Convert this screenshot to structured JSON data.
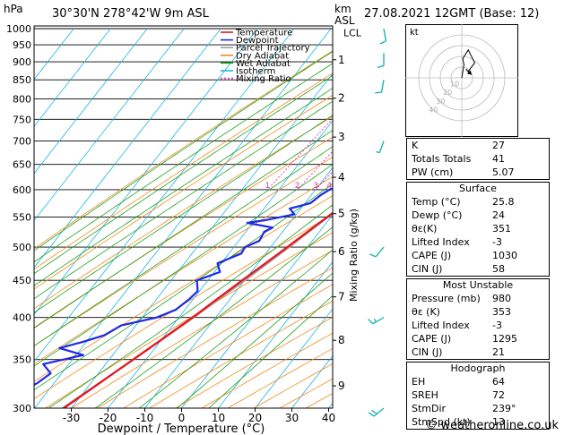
{
  "header": {
    "hpa_label": "hPa",
    "location": "30°30'N  278°42'W  9m  ASL",
    "km_label": "km",
    "asl_label": "ASL",
    "datetime": "27.08.2021  12GMT  (Base: 12)"
  },
  "chart_data": {
    "type": "skew-t",
    "xlabel": "Dewpoint / Temperature (°C)",
    "ylabel_right": "Mixing Ratio (g/kg)",
    "x_ticks": [
      -30,
      -20,
      -10,
      0,
      10,
      20,
      30,
      40
    ],
    "pressure_ticks": [
      300,
      350,
      400,
      450,
      500,
      550,
      600,
      650,
      700,
      750,
      800,
      850,
      900,
      950,
      1000
    ],
    "altitude_ticks_km": [
      {
        "km": "1",
        "p": 906
      },
      {
        "km": "2",
        "p": 802
      },
      {
        "km": "3",
        "p": 709
      },
      {
        "km": "4",
        "p": 624
      },
      {
        "km": "5",
        "p": 556
      },
      {
        "km": "6",
        "p": 493
      },
      {
        "km": "7",
        "p": 427
      },
      {
        "km": "8",
        "p": 372
      },
      {
        "km": "9",
        "p": 322
      }
    ],
    "lcl_label": "LCL",
    "lcl_pressure": 985,
    "mixing_ratio_labels": [
      "1",
      "2",
      "3",
      "4",
      "6",
      "8",
      "10",
      "15",
      "20",
      "25"
    ],
    "legend": [
      {
        "name": "Temperature",
        "color": "#e8141e"
      },
      {
        "name": "Dewpoint",
        "color": "#1e28e6"
      },
      {
        "name": "Parcel Trajectory",
        "color": "#a0a0a0"
      },
      {
        "name": "Dry Adiabat",
        "color": "#f08c1e"
      },
      {
        "name": "Wet Adiabat",
        "color": "#1ea01e"
      },
      {
        "name": "Isotherm",
        "color": "#1eb4e6"
      },
      {
        "name": "Mixing Ratio",
        "color": "#e632b4"
      }
    ],
    "temperature": [
      [
        1000,
        25.8
      ],
      [
        975,
        24.6
      ],
      [
        950,
        23.4
      ],
      [
        925,
        22.3
      ],
      [
        900,
        21.0
      ],
      [
        875,
        19.7
      ],
      [
        850,
        18.5
      ],
      [
        825,
        17.3
      ],
      [
        800,
        15.8
      ],
      [
        775,
        14.4
      ],
      [
        750,
        13.0
      ],
      [
        725,
        11.4
      ],
      [
        700,
        9.8
      ],
      [
        675,
        8.4
      ],
      [
        650,
        6.6
      ],
      [
        625,
        4.8
      ],
      [
        600,
        3.0
      ],
      [
        575,
        1.0
      ],
      [
        550,
        -1.0
      ],
      [
        525,
        -3.2
      ],
      [
        500,
        -5.5
      ],
      [
        475,
        -8.0
      ],
      [
        450,
        -10.7
      ],
      [
        425,
        -13.4
      ],
      [
        400,
        -16.3
      ],
      [
        375,
        -19.7
      ],
      [
        350,
        -23.5
      ],
      [
        325,
        -27.6
      ],
      [
        300,
        -32.0
      ]
    ],
    "dewpoint": [
      [
        1000,
        24.0
      ],
      [
        975,
        23.0
      ],
      [
        960,
        22.0
      ],
      [
        950,
        21.0
      ],
      [
        940,
        19.0
      ],
      [
        925,
        18.4
      ],
      [
        910,
        17.2
      ],
      [
        900,
        16.8
      ],
      [
        885,
        17.5
      ],
      [
        875,
        14.8
      ],
      [
        860,
        16.2
      ],
      [
        850,
        15.5
      ],
      [
        825,
        14.7
      ],
      [
        800,
        13.6
      ],
      [
        785,
        13.8
      ],
      [
        775,
        12.8
      ],
      [
        760,
        11.5
      ],
      [
        750,
        9.0
      ],
      [
        742,
        9.4
      ],
      [
        735,
        6.0
      ],
      [
        725,
        4.4
      ],
      [
        715,
        5.6
      ],
      [
        705,
        1.5
      ],
      [
        700,
        3.5
      ],
      [
        690,
        1.4
      ],
      [
        680,
        3.0
      ],
      [
        670,
        0.8
      ],
      [
        660,
        1.6
      ],
      [
        650,
        -0.8
      ],
      [
        640,
        -0.4
      ],
      [
        625,
        -4.5
      ],
      [
        612,
        -2.5
      ],
      [
        600,
        -6.2
      ],
      [
        590,
        -7.4
      ],
      [
        575,
        -8.5
      ],
      [
        565,
        -13.0
      ],
      [
        555,
        -10.5
      ],
      [
        545,
        -17.0
      ],
      [
        540,
        -21.5
      ],
      [
        532,
        -13.6
      ],
      [
        525,
        -15.0
      ],
      [
        510,
        -14.4
      ],
      [
        500,
        -17.0
      ],
      [
        490,
        -16.6
      ],
      [
        475,
        -21.0
      ],
      [
        462,
        -18.5
      ],
      [
        450,
        -23.0
      ],
      [
        435,
        -20.5
      ],
      [
        425,
        -21.0
      ],
      [
        410,
        -22.5
      ],
      [
        400,
        -26.0
      ],
      [
        390,
        -34.0
      ],
      [
        378,
        -36.5
      ],
      [
        370,
        -41.0
      ],
      [
        363,
        -46.0
      ],
      [
        355,
        -38.0
      ],
      [
        345,
        -47.0
      ],
      [
        335,
        -43.0
      ],
      [
        325,
        -44.5
      ],
      [
        312,
        -48.5
      ],
      [
        300,
        -49.5
      ]
    ],
    "parcel": [
      [
        1000,
        25.8
      ],
      [
        985,
        24.6
      ],
      [
        950,
        22.8
      ],
      [
        900,
        20.4
      ],
      [
        850,
        17.9
      ],
      [
        800,
        15.3
      ],
      [
        750,
        12.5
      ],
      [
        700,
        9.6
      ],
      [
        650,
        6.5
      ],
      [
        600,
        3.0
      ],
      [
        550,
        -0.8
      ],
      [
        500,
        -5.0
      ],
      [
        450,
        -10.0
      ],
      [
        400,
        -16.0
      ],
      [
        350,
        -23.4
      ],
      [
        300,
        -32.4
      ]
    ],
    "wind_barbs": [
      {
        "p": 300,
        "dir": 230,
        "spd": 20
      },
      {
        "p": 400,
        "dir": 240,
        "spd": 15
      },
      {
        "p": 500,
        "dir": 220,
        "spd": 10
      },
      {
        "p": 700,
        "dir": 200,
        "spd": 5
      },
      {
        "p": 850,
        "dir": 190,
        "spd": 10
      },
      {
        "p": 925,
        "dir": 180,
        "spd": 10
      },
      {
        "p": 1000,
        "dir": 170,
        "spd": 10
      }
    ]
  },
  "hodograph": {
    "unit_label": "kt",
    "ring_labels": [
      "10",
      "20",
      "30",
      "40"
    ],
    "trace": [
      [
        0,
        0
      ],
      [
        1,
        6
      ],
      [
        2,
        12
      ],
      [
        1,
        18
      ],
      [
        6,
        26
      ],
      [
        12,
        14
      ],
      [
        6,
        6
      ]
    ],
    "storm_motion": [
      9,
      3
    ]
  },
  "indices": {
    "basic": [
      {
        "k": "K",
        "v": "27"
      },
      {
        "k": "Totals Totals",
        "v": "41"
      },
      {
        "k": "PW (cm)",
        "v": "5.07"
      }
    ],
    "surface": {
      "title": "Surface",
      "rows": [
        {
          "k": "Temp (°C)",
          "v": "25.8"
        },
        {
          "k": "Dewp (°C)",
          "v": "24"
        },
        {
          "k": "θε(K)",
          "v": "351"
        },
        {
          "k": "Lifted Index",
          "v": "-3"
        },
        {
          "k": "CAPE (J)",
          "v": "1030"
        },
        {
          "k": "CIN (J)",
          "v": "58"
        }
      ]
    },
    "most_unstable": {
      "title": "Most Unstable",
      "rows": [
        {
          "k": "Pressure (mb)",
          "v": "980"
        },
        {
          "k": "θε (K)",
          "v": "353"
        },
        {
          "k": "Lifted Index",
          "v": "-3"
        },
        {
          "k": "CAPE (J)",
          "v": "1295"
        },
        {
          "k": "CIN (J)",
          "v": "21"
        }
      ]
    },
    "hodograph_box": {
      "title": "Hodograph",
      "rows": [
        {
          "k": "EH",
          "v": "64"
        },
        {
          "k": "SREH",
          "v": "72"
        },
        {
          "k": "StmDir",
          "v": "239°"
        },
        {
          "k": "StmSpd (kt)",
          "v": "13"
        }
      ]
    }
  },
  "footer": {
    "credit": "© weatheronline.co.uk"
  }
}
